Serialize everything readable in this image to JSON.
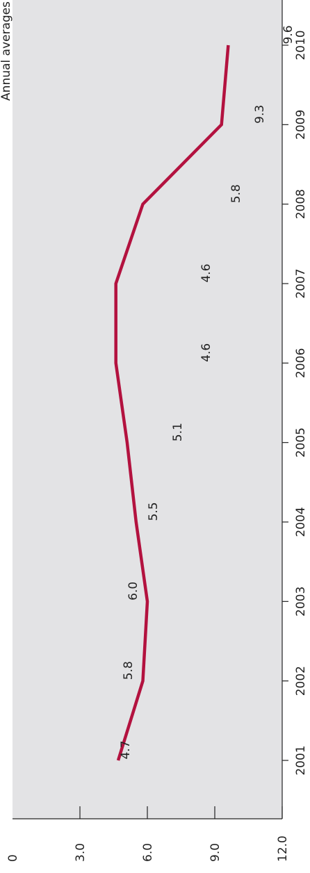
{
  "chart_data": {
    "type": "line",
    "subtitle": "Annual averages",
    "categories": [
      "2001",
      "2002",
      "2003",
      "2004",
      "2005",
      "2006",
      "2007",
      "2008",
      "2009",
      "2010"
    ],
    "series": [
      {
        "values": [
          4.7,
          5.8,
          6.0,
          5.5,
          5.1,
          4.6,
          4.6,
          5.8,
          9.3,
          9.6
        ]
      }
    ],
    "data_labels": [
      "4.7",
      "5.8",
      "6.0",
      "5.5",
      "5.1",
      "4.6",
      "4.6",
      "5.8",
      "9.3",
      "9.6"
    ],
    "y_ticks": [
      0,
      3.0,
      6.0,
      9.0,
      12.0
    ],
    "y_tick_labels": [
      "0",
      "3.0",
      "6.0",
      "9.0",
      "12.0"
    ],
    "ylim": [
      0,
      12
    ],
    "orientation": "rotated 90 degrees (value axis runs left-to-right along the bottom, years run along the right edge)",
    "grid": false,
    "colors": {
      "plot_background": "#e3e3e5",
      "line": "#b3123f",
      "axis": "#222222"
    }
  }
}
